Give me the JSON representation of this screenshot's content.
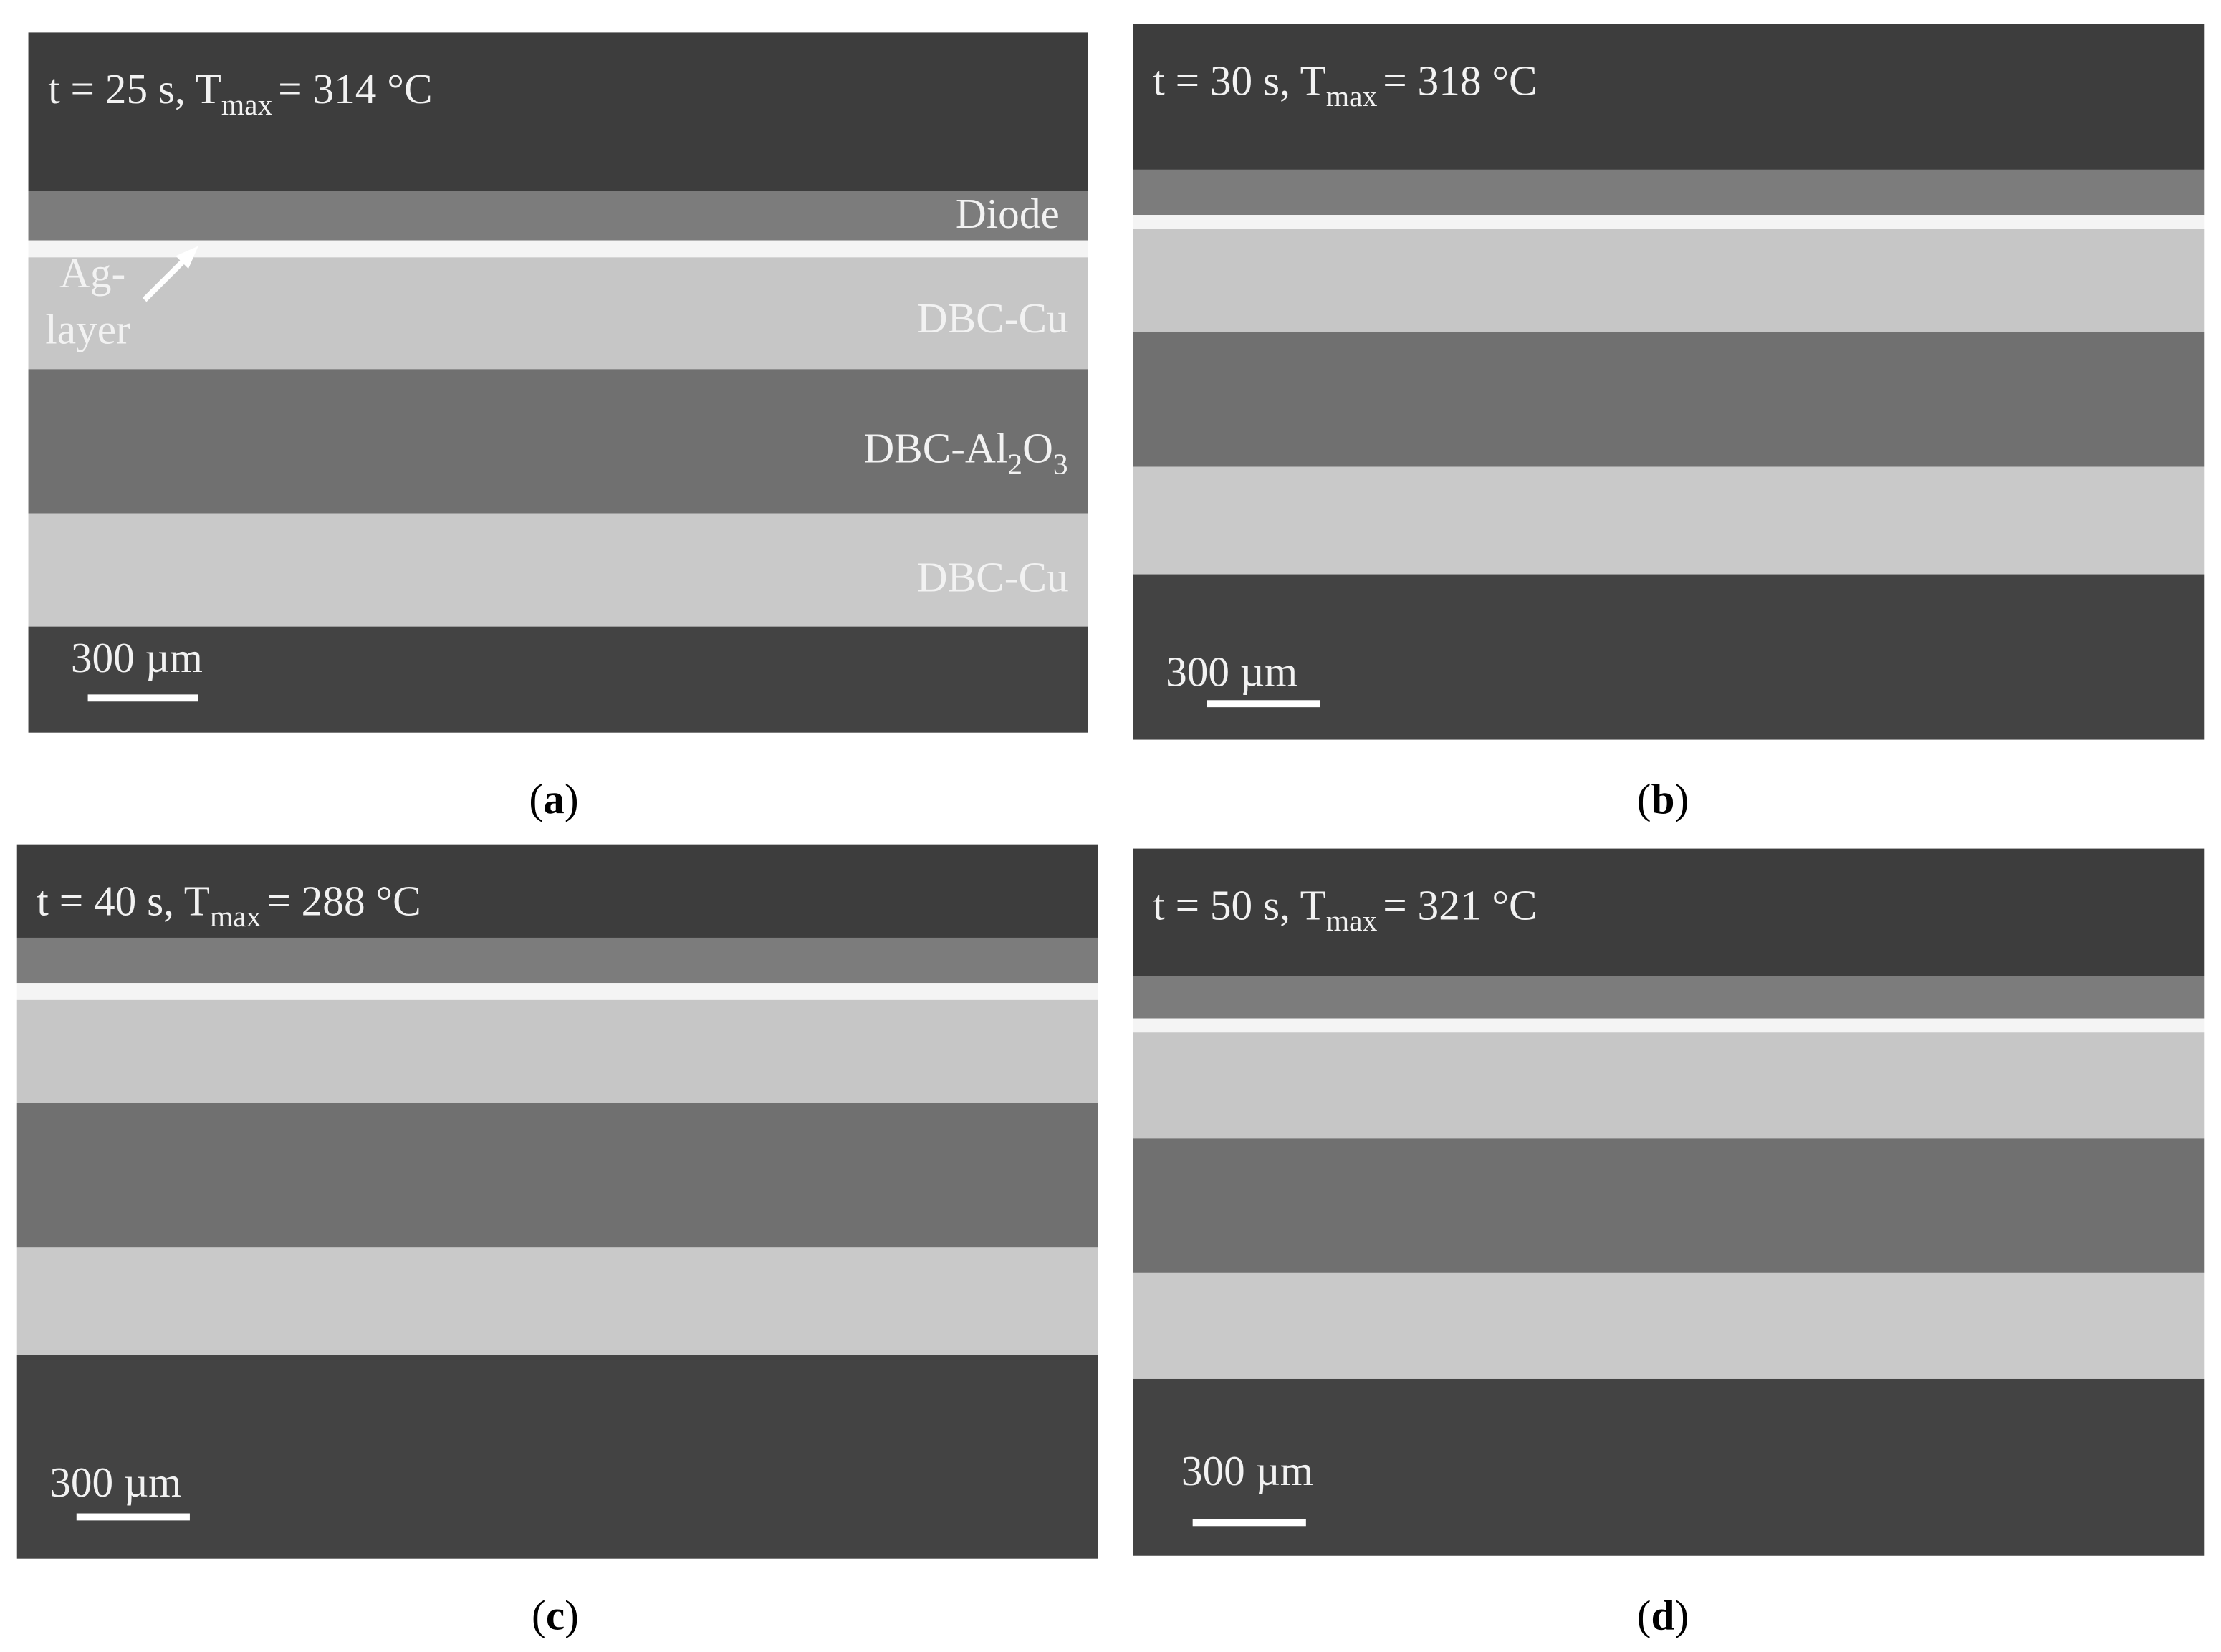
{
  "panels": [
    {
      "title": {
        "main": "t = 25 s, T",
        "sub": "max",
        "rest": "= 314 °C"
      },
      "layer_labels": {
        "diode": "Diode",
        "ag_line1": "Ag-",
        "ag_line2": "layer",
        "cu_top": "DBC-Cu",
        "al2o3": {
          "a": "DBC-Al",
          "b": "2",
          "c": "O",
          "d": "3"
        },
        "cu_bottom": "DBC-Cu"
      },
      "scale_label": "300 µm",
      "caption": {
        "open": "(",
        "letter": "a",
        "close": ")"
      }
    },
    {
      "title": {
        "main": "t = 30 s, T",
        "sub": "max",
        "rest": "= 318 °C"
      },
      "scale_label": "300 µm",
      "caption": {
        "open": "(",
        "letter": "b",
        "close": ")"
      }
    },
    {
      "title": {
        "main": "t = 40 s, T",
        "sub": "max",
        "rest": "= 288 °C"
      },
      "scale_label": "300 µm",
      "caption": {
        "open": "(",
        "letter": "c",
        "close": ")"
      }
    },
    {
      "title": {
        "main": "t = 50 s, T",
        "sub": "max",
        "rest": "= 321 °C"
      },
      "scale_label": "300 µm",
      "caption": {
        "open": "(",
        "letter": "d",
        "close": ")"
      }
    }
  ]
}
